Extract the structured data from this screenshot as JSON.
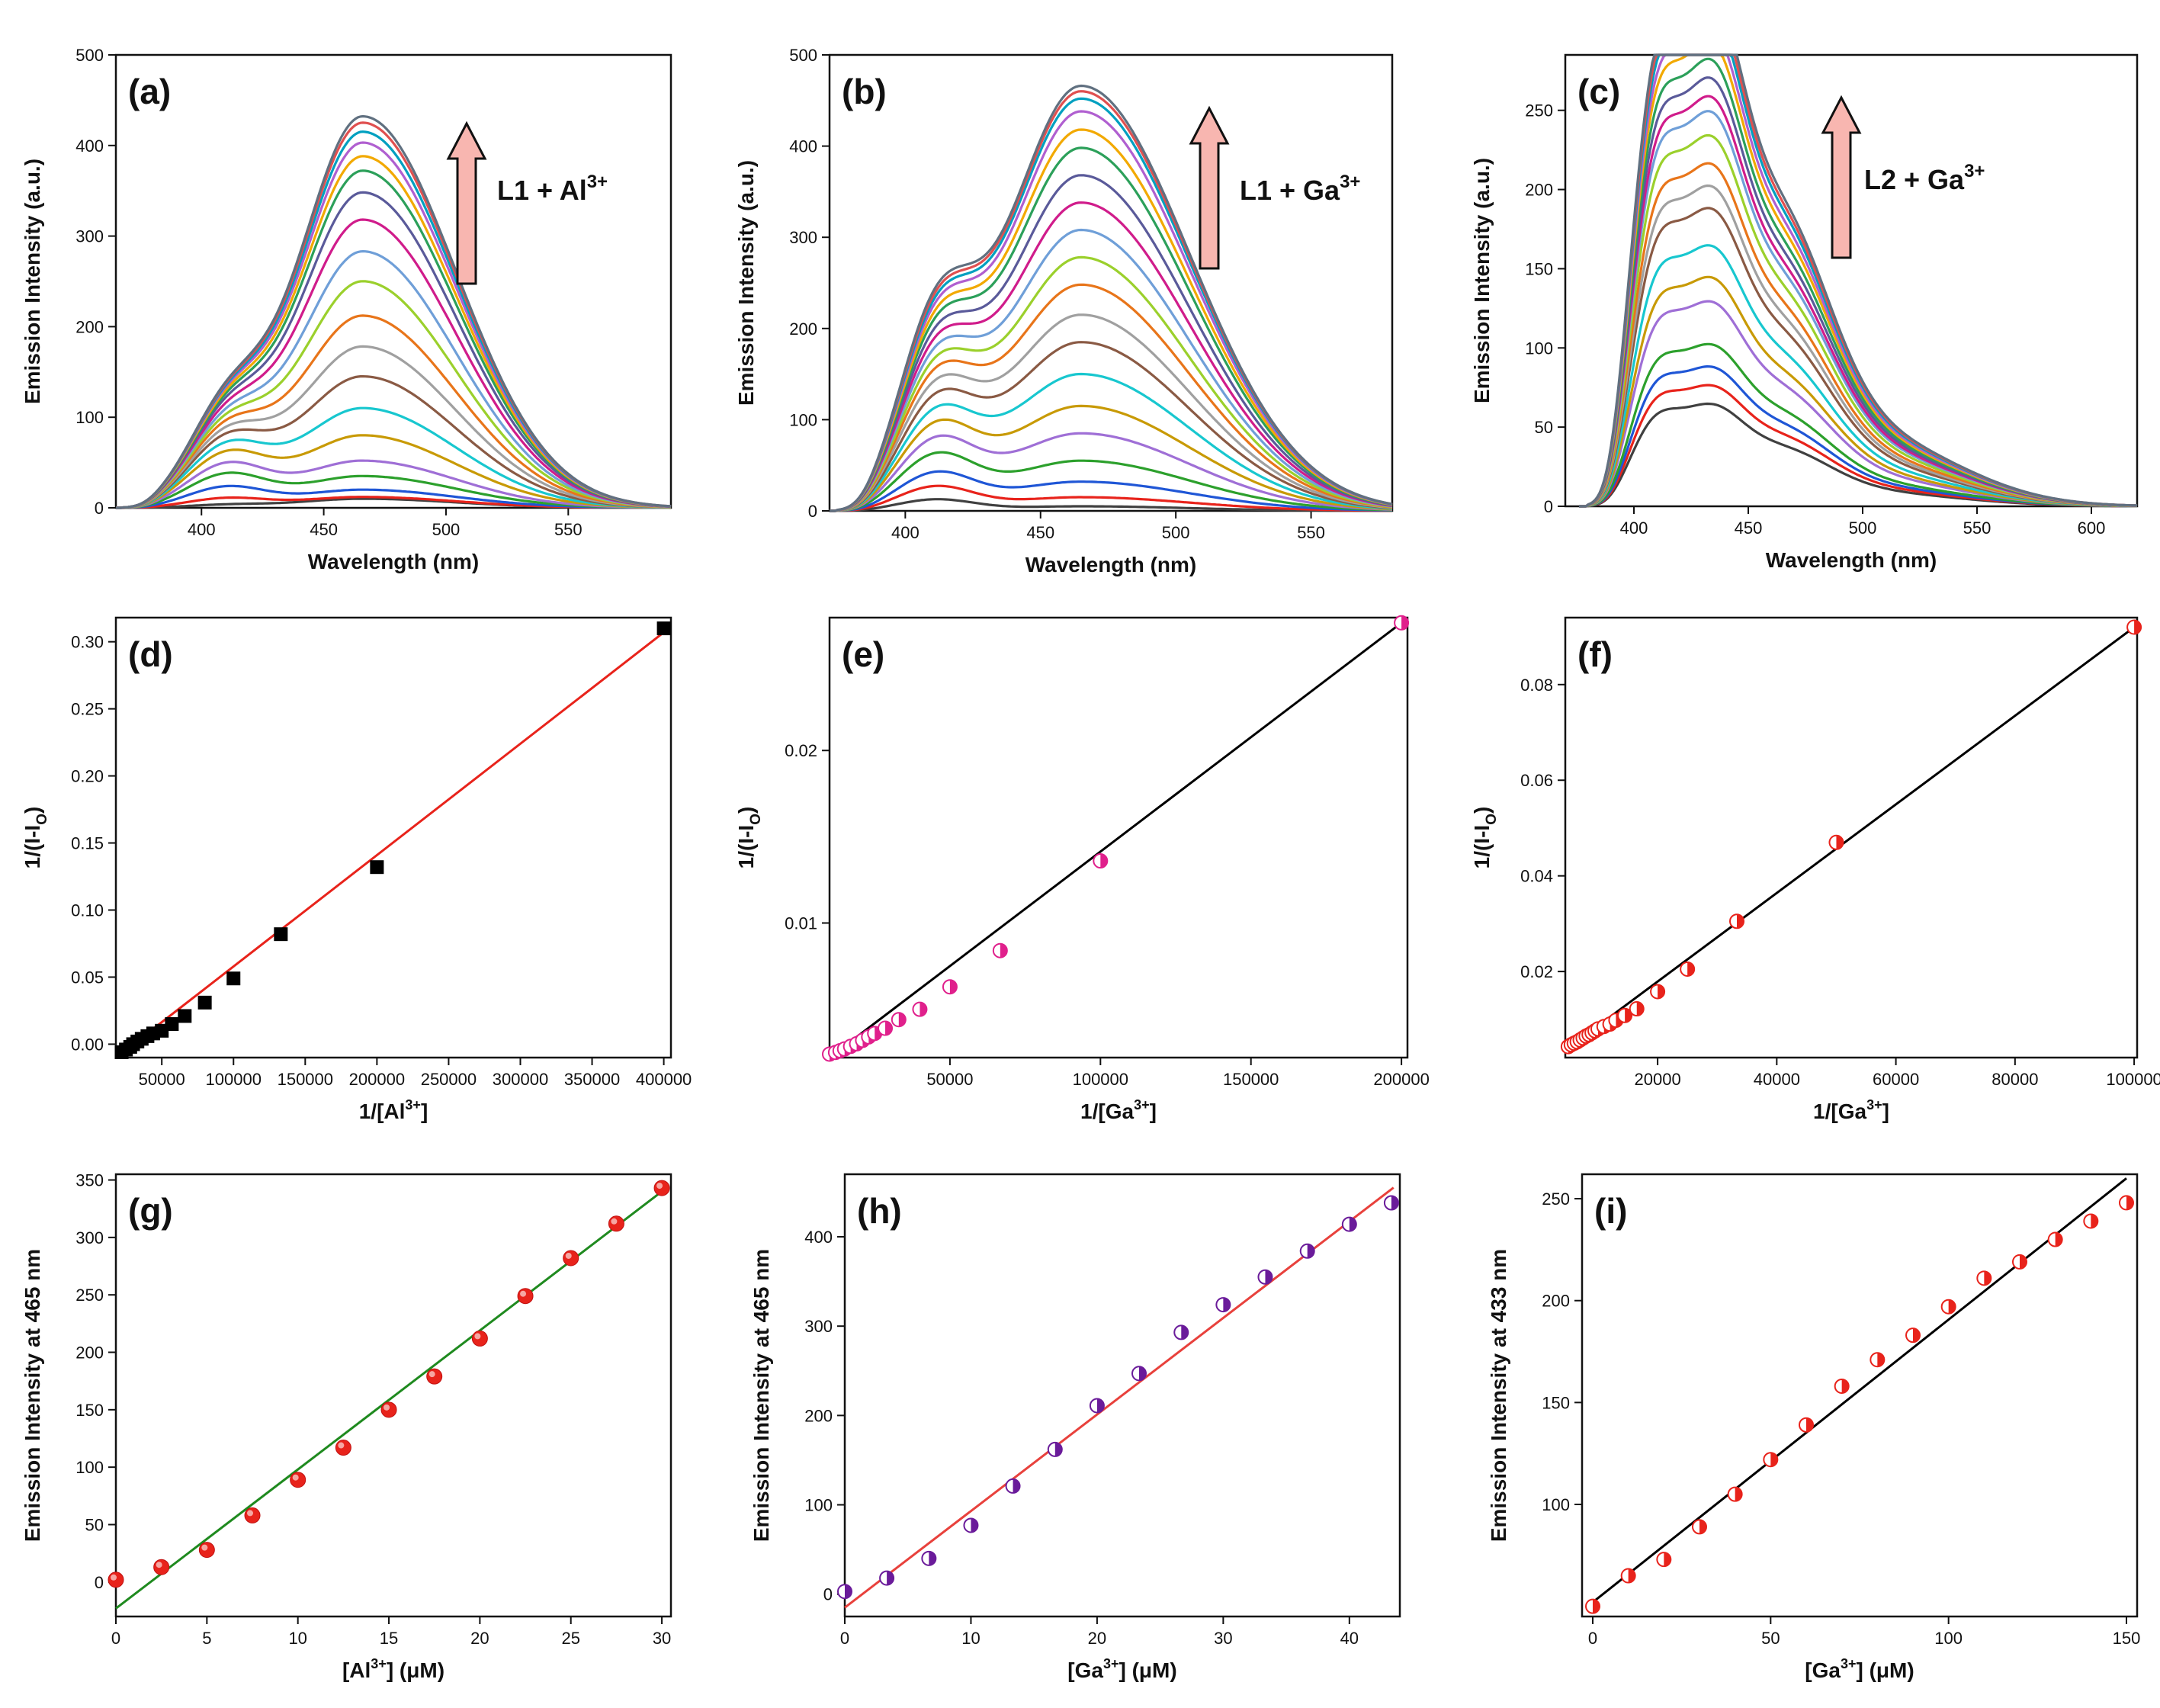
{
  "chart_data": [
    {
      "id": "a",
      "type": "line",
      "panel_label": "(a)",
      "xlabel": "Wavelength (nm)",
      "ylabel": "Emission Intensity (a.u.)",
      "xlim": [
        365,
        592
      ],
      "ylim": [
        0,
        500
      ],
      "xticks": [
        400,
        450,
        500,
        550
      ],
      "yticks": [
        0,
        100,
        200,
        300,
        400,
        500
      ],
      "annotation": {
        "base": "L1 + Al",
        "sup": "3+"
      },
      "spectra": {
        "kind": "double",
        "peak1": 410,
        "w1": 16,
        "peak2": 466,
        "wl": 26,
        "wr": 38,
        "start": 368,
        "series": [
          {
            "name": "0",
            "p1": 3,
            "p2": 10
          },
          {
            "name": "1",
            "p1": 10,
            "p2": 12
          },
          {
            "name": "2",
            "p1": 22,
            "p2": 20
          },
          {
            "name": "3",
            "p1": 35,
            "p2": 35
          },
          {
            "name": "4",
            "p1": 45,
            "p2": 52
          },
          {
            "name": "5",
            "p1": 55,
            "p2": 80
          },
          {
            "name": "6",
            "p1": 62,
            "p2": 110
          },
          {
            "name": "7",
            "p1": 68,
            "p2": 145
          },
          {
            "name": "8",
            "p1": 72,
            "p2": 178
          },
          {
            "name": "9",
            "p1": 76,
            "p2": 212
          },
          {
            "name": "10",
            "p1": 79,
            "p2": 250
          },
          {
            "name": "11",
            "p1": 82,
            "p2": 283
          },
          {
            "name": "12",
            "p1": 85,
            "p2": 318
          },
          {
            "name": "13",
            "p1": 88,
            "p2": 348
          },
          {
            "name": "14",
            "p1": 90,
            "p2": 372
          },
          {
            "name": "15",
            "p1": 92,
            "p2": 388
          },
          {
            "name": "16",
            "p1": 94,
            "p2": 403
          },
          {
            "name": "17",
            "p1": 95,
            "p2": 415
          },
          {
            "name": "18",
            "p1": 96,
            "p2": 425
          },
          {
            "name": "19",
            "p1": 97,
            "p2": 432
          }
        ]
      }
    },
    {
      "id": "b",
      "type": "line",
      "panel_label": "(b)",
      "xlabel": "Wavelength (nm)",
      "ylabel": "Emission Intensity (a.u.)",
      "xlim": [
        372,
        580
      ],
      "ylim": [
        0,
        500
      ],
      "xticks": [
        400,
        450,
        500,
        550
      ],
      "yticks": [
        0,
        100,
        200,
        300,
        400,
        500
      ],
      "annotation": {
        "base": "L1 + Ga",
        "sup": "3+"
      },
      "spectra": {
        "kind": "double",
        "peak1": 411,
        "w1": 14,
        "peak2": 465,
        "wl": 28,
        "wr": 40,
        "start": 375,
        "series": [
          {
            "name": "0",
            "p1": 12,
            "p2": 5
          },
          {
            "name": "1",
            "p1": 25,
            "p2": 15
          },
          {
            "name": "2",
            "p1": 38,
            "p2": 32
          },
          {
            "name": "3",
            "p1": 55,
            "p2": 55
          },
          {
            "name": "4",
            "p1": 68,
            "p2": 85
          },
          {
            "name": "5",
            "p1": 80,
            "p2": 115
          },
          {
            "name": "6",
            "p1": 90,
            "p2": 150
          },
          {
            "name": "7",
            "p1": 100,
            "p2": 185
          },
          {
            "name": "8",
            "p1": 110,
            "p2": 215
          },
          {
            "name": "9",
            "p1": 118,
            "p2": 248
          },
          {
            "name": "10",
            "p1": 125,
            "p2": 278
          },
          {
            "name": "11",
            "p1": 132,
            "p2": 308
          },
          {
            "name": "12",
            "p1": 138,
            "p2": 338
          },
          {
            "name": "13",
            "p1": 144,
            "p2": 368
          },
          {
            "name": "14",
            "p1": 150,
            "p2": 398
          },
          {
            "name": "15",
            "p1": 155,
            "p2": 418
          },
          {
            "name": "16",
            "p1": 160,
            "p2": 438
          },
          {
            "name": "17",
            "p1": 164,
            "p2": 452
          },
          {
            "name": "18",
            "p1": 168,
            "p2": 460
          },
          {
            "name": "19",
            "p1": 172,
            "p2": 466
          }
        ]
      }
    },
    {
      "id": "c",
      "type": "line",
      "panel_label": "(c)",
      "xlabel": "Wavelength (nm)",
      "ylabel": "Emission Intensity (a.u.)",
      "xlim": [
        370,
        620
      ],
      "ylim": [
        0,
        285
      ],
      "xticks": [
        400,
        450,
        500,
        550,
        600
      ],
      "yticks": [
        0,
        50,
        100,
        150,
        200,
        250
      ],
      "annotation": {
        "base": "L2 + Ga",
        "sup": "3+"
      },
      "spectra": {
        "kind": "triple",
        "start": 380,
        "series": [
          {
            "name": "0",
            "scale": 55
          },
          {
            "name": "1",
            "scale": 65
          },
          {
            "name": "2",
            "scale": 75
          },
          {
            "name": "3",
            "scale": 87
          },
          {
            "name": "4",
            "scale": 110
          },
          {
            "name": "5",
            "scale": 123
          },
          {
            "name": "6",
            "scale": 140
          },
          {
            "name": "7",
            "scale": 160
          },
          {
            "name": "8",
            "scale": 172
          },
          {
            "name": "9",
            "scale": 184
          },
          {
            "name": "10",
            "scale": 199
          },
          {
            "name": "11",
            "scale": 212
          },
          {
            "name": "12",
            "scale": 220
          },
          {
            "name": "13",
            "scale": 230
          },
          {
            "name": "14",
            "scale": 240
          },
          {
            "name": "15",
            "scale": 250
          },
          {
            "name": "16",
            "scale": 258
          },
          {
            "name": "17",
            "scale": 266
          },
          {
            "name": "18",
            "scale": 272
          },
          {
            "name": "19",
            "scale": 278
          }
        ]
      }
    },
    {
      "id": "d",
      "type": "scatter",
      "panel_label": "(d)",
      "xlabel_base": "1/[Al",
      "xlabel_sup": "3+",
      "xlabel_end": "]",
      "ylabel_base": "1/(I-I",
      "ylabel_sub": "O",
      "ylabel_end": ")",
      "xlim": [
        18000,
        405000
      ],
      "ylim": [
        -0.01,
        0.318
      ],
      "xticks": [
        50000,
        100000,
        150000,
        200000,
        250000,
        300000,
        350000,
        400000
      ],
      "yticks": [
        0.0,
        0.05,
        0.1,
        0.15,
        0.2,
        0.25,
        0.3
      ],
      "ytick_decimals": 2,
      "marker": "square",
      "marker_color": "#000000",
      "fit": {
        "color": "#e8231b",
        "x": [
          20000,
          400000
        ],
        "y": [
          -0.0085,
          0.307
        ]
      },
      "x": [
        22000,
        25000,
        28000,
        30000,
        33000,
        36000,
        40000,
        44000,
        50000,
        57000,
        66000,
        80000,
        100000,
        133000,
        200000,
        400000
      ],
      "y": [
        -0.006,
        -0.004,
        -0.002,
        0.0,
        0.002,
        0.004,
        0.006,
        0.008,
        0.01,
        0.015,
        0.021,
        0.031,
        0.049,
        0.082,
        0.132,
        0.31
      ]
    },
    {
      "id": "e",
      "type": "scatter",
      "panel_label": "(e)",
      "xlabel_base": "1/[Ga",
      "xlabel_sup": "3+",
      "xlabel_end": "]",
      "ylabel_base": "1/(I-I",
      "ylabel_sub": "O",
      "ylabel_end": ")",
      "xlim": [
        10000,
        202000
      ],
      "ylim": [
        0.0022,
        0.0277
      ],
      "xticks": [
        50000,
        100000,
        150000,
        200000
      ],
      "yticks": [
        0.01,
        0.02
      ],
      "ytick_decimals": 2,
      "marker": "halfcircle",
      "marker_color": "#e0208c",
      "fit": {
        "color": "#000000",
        "x": [
          10000,
          200000
        ],
        "y": [
          0.0022,
          0.0274
        ]
      },
      "x": [
        10000,
        12000,
        13500,
        15000,
        17000,
        19000,
        21000,
        23000,
        25000,
        28500,
        33000,
        40000,
        50000,
        66700,
        100000,
        200000
      ],
      "y": [
        0.0024,
        0.0025,
        0.0026,
        0.0027,
        0.00285,
        0.003,
        0.0032,
        0.0034,
        0.0036,
        0.0039,
        0.0044,
        0.005,
        0.0063,
        0.0084,
        0.0136,
        0.0274
      ]
    },
    {
      "id": "f",
      "type": "scatter",
      "panel_label": "(f)",
      "xlabel_base": "1/[Ga",
      "xlabel_sup": "3+",
      "xlabel_end": "]",
      "ylabel_base": "1/(I-I",
      "ylabel_sub": "O",
      "ylabel_end": ")",
      "xlim": [
        4500,
        100500
      ],
      "ylim": [
        0.002,
        0.094
      ],
      "xticks": [
        20000,
        40000,
        60000,
        80000,
        100000
      ],
      "yticks": [
        0.02,
        0.04,
        0.06,
        0.08
      ],
      "ytick_decimals": 2,
      "marker": "halfcircle",
      "marker_color": "#e8231b",
      "fit": {
        "color": "#000000",
        "x": [
          5000,
          100000
        ],
        "y": [
          0.004,
          0.092
        ]
      },
      "x": [
        5000,
        5500,
        6000,
        6500,
        7000,
        7500,
        8000,
        8500,
        9000,
        9500,
        10000,
        11000,
        12000,
        13000,
        14500,
        16500,
        20000,
        25000,
        33300,
        50000,
        100000
      ],
      "y": [
        0.0043,
        0.0047,
        0.005,
        0.0053,
        0.0057,
        0.0061,
        0.0065,
        0.0068,
        0.0072,
        0.0076,
        0.008,
        0.0085,
        0.009,
        0.0098,
        0.0108,
        0.0122,
        0.0158,
        0.0205,
        0.0305,
        0.047,
        0.092
      ]
    },
    {
      "id": "g",
      "type": "scatter",
      "panel_label": "(g)",
      "xlabel_base": "[Al",
      "xlabel_sup": "3+",
      "xlabel_end": "] (μM)",
      "ylabel_base": "Emission Intensity at 465 nm",
      "ylabel_sub": "",
      "ylabel_end": "",
      "xlim": [
        0,
        30.5
      ],
      "ylim": [
        -30,
        355
      ],
      "xticks": [
        0,
        5,
        10,
        15,
        20,
        25,
        30
      ],
      "yticks": [
        0,
        50,
        100,
        150,
        200,
        250,
        300,
        350
      ],
      "ytick_decimals": 0,
      "marker": "sphere",
      "marker_color": "#e8231b",
      "fit": {
        "color": "#1f8a1f",
        "x": [
          0,
          30
        ],
        "y": [
          -23,
          340
        ]
      },
      "x": [
        0,
        2.5,
        5,
        7.5,
        10,
        12.5,
        15,
        17.5,
        20,
        22.5,
        25,
        27.5,
        30
      ],
      "y": [
        2,
        13,
        28,
        58,
        89,
        117,
        150,
        179,
        212,
        249,
        282,
        312,
        343
      ]
    },
    {
      "id": "h",
      "type": "scatter",
      "panel_label": "(h)",
      "xlabel_base": "[Ga",
      "xlabel_sup": "3+",
      "xlabel_end": "] (μM)",
      "ylabel_base": "Emission Intensity at 465 nm",
      "ylabel_sub": "",
      "ylabel_end": "",
      "xlim": [
        0,
        44
      ],
      "ylim": [
        -25,
        470
      ],
      "xticks": [
        0,
        10,
        20,
        30,
        40
      ],
      "yticks": [
        0,
        100,
        200,
        300,
        400
      ],
      "ytick_decimals": 0,
      "marker": "halfcircle",
      "marker_color": "#6a1b9a",
      "fit": {
        "color": "#e8413c",
        "x": [
          0,
          43.5
        ],
        "y": [
          -15,
          455
        ]
      },
      "x": [
        0,
        3.33,
        6.67,
        10,
        13.33,
        16.67,
        20,
        23.33,
        26.67,
        30,
        33.33,
        36.67,
        40,
        43.33
      ],
      "y": [
        3,
        18,
        40,
        77,
        121,
        162,
        211,
        247,
        293,
        324,
        355,
        384,
        414,
        438
      ]
    },
    {
      "id": "i",
      "type": "scatter",
      "panel_label": "(i)",
      "xlabel_base": "[Ga",
      "xlabel_sup": "3+",
      "xlabel_end": "] (μM)",
      "ylabel_base": "Emission Intensity at 433 nm",
      "ylabel_sub": "",
      "ylabel_end": "",
      "xlim": [
        -3,
        153
      ],
      "ylim": [
        45,
        262
      ],
      "xticks": [
        0,
        50,
        100,
        150
      ],
      "yticks": [
        100,
        150,
        200,
        250
      ],
      "ytick_decimals": 0,
      "marker": "halfcircle",
      "marker_color": "#e8231b",
      "fit": {
        "color": "#000000",
        "x": [
          0,
          150
        ],
        "y": [
          52,
          260
        ]
      },
      "x": [
        0,
        10,
        20,
        30,
        40,
        50,
        60,
        70,
        80,
        90,
        100,
        110,
        120,
        130,
        140,
        150
      ],
      "y": [
        50,
        65,
        73,
        89,
        105,
        122,
        139,
        158,
        171,
        183,
        197,
        211,
        219,
        230,
        239,
        248
      ]
    }
  ],
  "colors": {
    "spectra_palette": [
      "#404040",
      "#e8231b",
      "#1f56d6",
      "#2ca02c",
      "#9f6fd6",
      "#c89a05",
      "#18c7cf",
      "#8a5a44",
      "#a0a0a0",
      "#e8751a",
      "#9bd02c",
      "#6f9fd8",
      "#d01c8b",
      "#5a5a9a",
      "#2ca05a",
      "#f2a900",
      "#b05fd0",
      "#00a0c0",
      "#e05050",
      "#607080"
    ],
    "arrow_fill": "#f8b6b0"
  }
}
